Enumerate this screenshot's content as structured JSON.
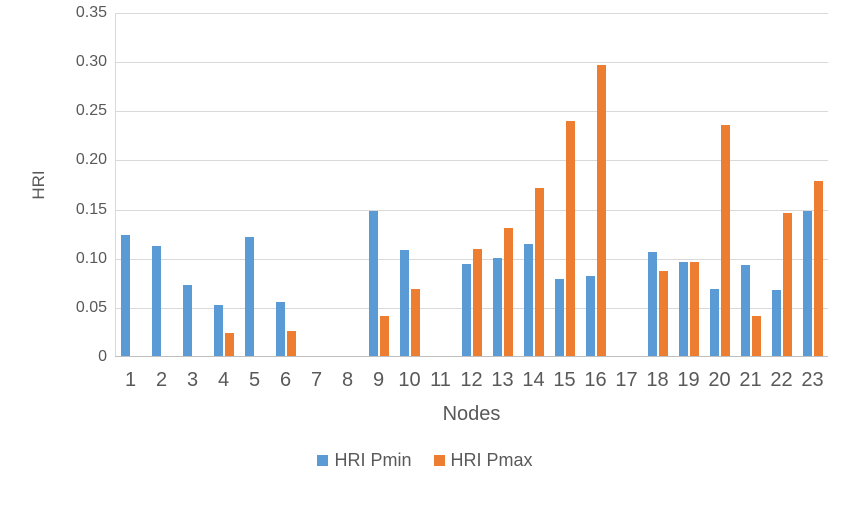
{
  "chart_data": {
    "type": "bar",
    "title": "",
    "xlabel": "Nodes",
    "ylabel": "HRI",
    "ylim": [
      0,
      0.35
    ],
    "ytick_interval": 0.05,
    "ytick_labels": [
      "0.35",
      "0.30",
      "0.25",
      "0.20",
      "0.15",
      "0.10",
      "0.05",
      "0"
    ],
    "grid": true,
    "legend_position": "bottom",
    "categories": [
      "1",
      "2",
      "3",
      "4",
      "5",
      "6",
      "7",
      "8",
      "9",
      "10",
      "11",
      "12",
      "13",
      "14",
      "15",
      "16",
      "17",
      "18",
      "19",
      "20",
      "21",
      "22",
      "23"
    ],
    "series": [
      {
        "name": "HRI Pmin",
        "color": "#5B9BD5",
        "values": [
          0.123,
          0.112,
          0.072,
          0.052,
          0.121,
          0.055,
          0,
          0,
          0.148,
          0.108,
          0,
          0.094,
          0.1,
          0.114,
          0.078,
          0.081,
          0,
          0.106,
          0.096,
          0.068,
          0.093,
          0.067,
          0.148
        ]
      },
      {
        "name": "HRI Pmax",
        "color": "#ED7D31",
        "values": [
          0,
          0,
          0,
          0.023,
          0,
          0.025,
          0,
          0,
          0.041,
          0.068,
          0,
          0.109,
          0.13,
          0.171,
          0.239,
          0.296,
          0,
          0.087,
          0.096,
          0.235,
          0.041,
          0.146,
          0.178
        ]
      }
    ]
  },
  "colors": {
    "background": "#FFFFFF",
    "gridline": "#D9D9D9",
    "axis_line": "#BFBFBF",
    "text": "#595959"
  }
}
